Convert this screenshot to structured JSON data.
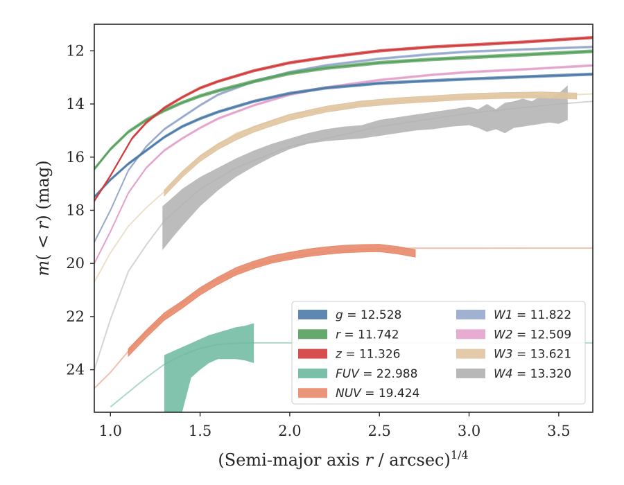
{
  "chart_data": {
    "type": "line",
    "xlabel_parts": [
      "(Semi-major axis ",
      "r",
      " / arcsec)",
      "1/4"
    ],
    "ylabel_parts": [
      "m",
      "( < ",
      "r",
      ")",
      " (mag)"
    ],
    "xlim": [
      0.91,
      3.69
    ],
    "ylim": [
      25.6,
      11.0
    ],
    "y_inverted": true,
    "x_ticks": [
      {
        "value": 1.0,
        "label": "1.0"
      },
      {
        "value": 1.5,
        "label": "1.5"
      },
      {
        "value": 2.0,
        "label": "2.0"
      },
      {
        "value": 2.5,
        "label": "2.5"
      },
      {
        "value": 3.0,
        "label": "3.0"
      },
      {
        "value": 3.5,
        "label": "3.5"
      }
    ],
    "y_ticks": [
      {
        "value": 12,
        "label": "12"
      },
      {
        "value": 14,
        "label": "14"
      },
      {
        "value": 16,
        "label": "16"
      },
      {
        "value": 18,
        "label": "18"
      },
      {
        "value": 20,
        "label": "20"
      },
      {
        "value": 22,
        "label": "22"
      },
      {
        "value": 24,
        "label": "24"
      }
    ],
    "legend_position": "lower-right",
    "series": [
      {
        "key": "g",
        "band": "g",
        "value": "12.528",
        "color": "#4c7aa8",
        "x": [
          0.91,
          1.0,
          1.1,
          1.2,
          1.3,
          1.4,
          1.5,
          1.6,
          1.8,
          2.0,
          2.2,
          2.5,
          2.8,
          3.0,
          3.3,
          3.69
        ],
        "y": [
          17.5,
          16.85,
          16.25,
          15.75,
          15.25,
          14.85,
          14.55,
          14.3,
          13.9,
          13.6,
          13.4,
          13.22,
          13.12,
          13.06,
          12.98,
          12.88
        ],
        "width": 0.12
      },
      {
        "key": "r",
        "band": "r",
        "value": "11.742",
        "color": "#55a05c",
        "x": [
          0.91,
          1.0,
          1.1,
          1.2,
          1.3,
          1.4,
          1.5,
          1.6,
          1.8,
          2.0,
          2.2,
          2.5,
          2.8,
          3.0,
          3.3,
          3.69
        ],
        "y": [
          16.45,
          15.7,
          15.05,
          14.6,
          14.25,
          13.95,
          13.7,
          13.5,
          13.15,
          12.85,
          12.65,
          12.45,
          12.32,
          12.25,
          12.15,
          12.02
        ],
        "width": 0.14
      },
      {
        "key": "z",
        "band": "z",
        "value": "11.326",
        "color": "#d13b3b",
        "x": [
          0.91,
          1.0,
          1.12,
          1.2,
          1.3,
          1.4,
          1.5,
          1.6,
          1.8,
          2.0,
          2.2,
          2.5,
          2.8,
          3.0,
          3.3,
          3.69
        ],
        "y": [
          17.65,
          16.7,
          15.3,
          14.7,
          14.15,
          13.75,
          13.4,
          13.15,
          12.75,
          12.45,
          12.25,
          12.0,
          11.85,
          11.78,
          11.67,
          11.5
        ],
        "width": 0.12
      },
      {
        "key": "FUV",
        "band": "FUV",
        "value": "22.988",
        "color": "#6cb89f",
        "line_x": [
          1.0,
          1.1,
          1.2,
          1.3,
          1.4,
          1.5,
          1.6,
          1.7,
          1.8,
          2.0,
          2.5,
          3.0,
          3.5,
          3.69
        ],
        "line_y": [
          25.4,
          24.85,
          24.3,
          23.8,
          23.45,
          23.2,
          23.05,
          23.0,
          22.99,
          22.99,
          22.99,
          22.99,
          22.99,
          22.99
        ],
        "band_x": [
          1.3,
          1.35,
          1.4,
          1.45,
          1.5,
          1.55,
          1.6,
          1.65,
          1.7,
          1.75,
          1.8
        ],
        "band_upper": [
          23.45,
          23.3,
          23.15,
          23.0,
          22.85,
          22.7,
          22.6,
          22.5,
          22.4,
          22.35,
          22.25
        ],
        "band_lower": [
          25.6,
          25.6,
          25.6,
          24.3,
          24.0,
          23.75,
          23.6,
          23.6,
          23.6,
          23.65,
          23.75
        ]
      },
      {
        "key": "NUV",
        "band": "NUV",
        "value": "19.424",
        "color": "#e8896a",
        "line_x": [
          0.91,
          1.0,
          1.1,
          1.2,
          1.3,
          1.4,
          1.5,
          1.6,
          1.8,
          2.0,
          2.2,
          2.5,
          2.7,
          3.0,
          3.5,
          3.69
        ],
        "line_y": [
          24.7,
          24.1,
          23.3,
          22.6,
          22.0,
          21.5,
          21.0,
          20.6,
          20.05,
          19.75,
          19.55,
          19.45,
          19.43,
          19.425,
          19.424,
          19.424
        ],
        "thick_x": [
          1.1,
          1.2,
          1.3,
          1.4,
          1.5,
          1.6,
          1.7,
          1.8,
          1.9,
          2.0,
          2.1,
          2.2,
          2.3,
          2.4,
          2.5,
          2.6,
          2.7
        ],
        "thick_y": [
          23.35,
          22.65,
          22.0,
          21.55,
          21.05,
          20.65,
          20.3,
          20.05,
          19.85,
          19.72,
          19.6,
          19.52,
          19.46,
          19.43,
          19.42,
          19.5,
          19.62
        ],
        "width": 0.28
      },
      {
        "key": "W1",
        "band": "W1",
        "value": "11.822",
        "color": "#97a9cc",
        "x": [
          0.91,
          1.0,
          1.1,
          1.2,
          1.3,
          1.4,
          1.5,
          1.6,
          1.8,
          2.0,
          2.2,
          2.5,
          2.8,
          3.0,
          3.3,
          3.69
        ],
        "y": [
          19.2,
          18.0,
          16.5,
          15.6,
          14.95,
          14.5,
          14.05,
          13.65,
          13.15,
          12.8,
          12.55,
          12.3,
          12.12,
          12.03,
          11.95,
          11.85
        ],
        "width": 0.1
      },
      {
        "key": "W2",
        "band": "W2",
        "value": "12.509",
        "color": "#e3a3cc",
        "x": [
          0.91,
          1.0,
          1.1,
          1.2,
          1.3,
          1.4,
          1.5,
          1.6,
          1.8,
          2.0,
          2.2,
          2.5,
          2.8,
          3.0,
          3.3,
          3.69
        ],
        "y": [
          20.0,
          18.8,
          17.35,
          16.4,
          15.75,
          15.3,
          14.9,
          14.55,
          14.05,
          13.65,
          13.38,
          13.1,
          12.9,
          12.8,
          12.7,
          12.55
        ],
        "width": 0.1
      },
      {
        "key": "W3",
        "band": "W3",
        "value": "13.621",
        "color": "#e0c4a0",
        "line_x": [
          0.91,
          1.0,
          1.1,
          1.2,
          1.3,
          1.5,
          1.7,
          2.0,
          2.5,
          3.0,
          3.5,
          3.69
        ],
        "line_y": [
          20.7,
          19.6,
          18.6,
          17.9,
          17.3,
          16.0,
          15.1,
          14.4,
          13.95,
          13.75,
          13.68,
          13.62
        ],
        "thick_x": [
          1.3,
          1.4,
          1.5,
          1.6,
          1.7,
          1.8,
          1.9,
          2.0,
          2.2,
          2.4,
          2.6,
          2.8,
          3.0,
          3.2,
          3.4,
          3.6
        ],
        "thick_y": [
          17.35,
          16.65,
          16.05,
          15.6,
          15.25,
          14.95,
          14.72,
          14.5,
          14.2,
          14.0,
          13.88,
          13.8,
          13.72,
          13.68,
          13.66,
          13.7
        ],
        "width": 0.22
      },
      {
        "key": "W4",
        "band": "W4",
        "value": "13.320",
        "color": "#b0b0b0",
        "line_x": [
          0.91,
          1.0,
          1.1,
          1.2,
          1.3,
          1.5,
          1.7,
          2.0,
          2.5,
          3.0,
          3.5,
          3.69
        ],
        "line_y": [
          24.0,
          22.1,
          20.3,
          19.3,
          18.4,
          17.2,
          16.4,
          15.6,
          14.85,
          14.35,
          14.0,
          13.9
        ],
        "band_x": [
          1.29,
          1.35,
          1.4,
          1.5,
          1.6,
          1.7,
          1.8,
          1.9,
          2.0,
          2.1,
          2.2,
          2.3,
          2.4,
          2.5,
          2.6,
          2.7,
          2.8,
          2.9,
          3.0,
          3.05,
          3.1,
          3.15,
          3.2,
          3.25,
          3.3,
          3.35,
          3.4,
          3.45,
          3.5,
          3.55
        ],
        "band_upper": [
          17.85,
          17.5,
          17.2,
          16.75,
          16.4,
          16.05,
          15.75,
          15.5,
          15.3,
          15.1,
          14.95,
          14.85,
          14.8,
          14.6,
          14.5,
          14.4,
          14.3,
          14.2,
          14.1,
          14.2,
          14.0,
          14.2,
          13.95,
          13.9,
          13.8,
          13.9,
          13.7,
          13.8,
          13.6,
          13.3
        ],
        "band_lower": [
          19.5,
          19.0,
          18.6,
          17.85,
          17.25,
          16.75,
          16.35,
          16.0,
          15.7,
          15.5,
          15.4,
          15.35,
          15.3,
          15.2,
          15.1,
          15.0,
          14.95,
          14.85,
          14.8,
          14.9,
          15.05,
          14.95,
          15.1,
          14.9,
          14.85,
          14.8,
          14.75,
          14.7,
          14.75,
          14.6
        ]
      }
    ],
    "legend": {
      "columns": [
        [
          {
            "key": "g",
            "italic": "g",
            "text": " = 12.528"
          },
          {
            "key": "r",
            "italic": "r",
            "text": " = 11.742"
          },
          {
            "key": "z",
            "italic": "z",
            "text": " = 11.326"
          },
          {
            "key": "FUV",
            "italic": "FUV",
            "text": " = 22.988"
          },
          {
            "key": "NUV",
            "italic": "NUV",
            "text": " = 19.424"
          }
        ],
        [
          {
            "key": "W1",
            "italic": "W1",
            "text": " = 11.822"
          },
          {
            "key": "W2",
            "italic": "W2",
            "text": " = 12.509"
          },
          {
            "key": "W3",
            "italic": "W3",
            "text": " = 13.621"
          },
          {
            "key": "W4",
            "italic": "W4",
            "text": " = 13.320"
          }
        ]
      ]
    }
  }
}
